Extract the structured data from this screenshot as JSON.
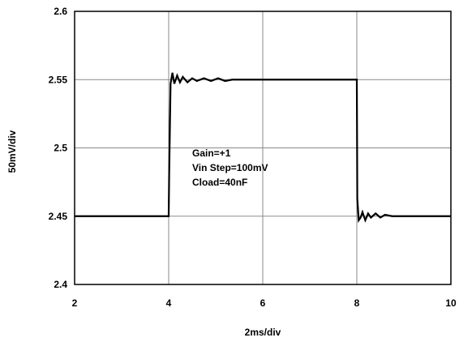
{
  "chart_data": {
    "type": "line",
    "x": [
      2,
      4,
      4.01,
      4.04,
      4.08,
      4.12,
      4.18,
      4.24,
      4.3,
      4.4,
      4.5,
      4.6,
      4.75,
      4.9,
      5.05,
      5.2,
      5.35,
      8,
      8.01,
      8.04,
      8.08,
      8.12,
      8.18,
      8.24,
      8.3,
      8.4,
      8.5,
      8.6,
      8.75,
      8.9,
      10
    ],
    "series": [
      {
        "name": "",
        "values": [
          2.45,
          2.45,
          2.48,
          2.547,
          2.555,
          2.547,
          2.553,
          2.548,
          2.552,
          2.548,
          2.551,
          2.549,
          2.551,
          2.549,
          2.551,
          2.549,
          2.55,
          2.55,
          2.463,
          2.447,
          2.449,
          2.453,
          2.447,
          2.452,
          2.449,
          2.452,
          2.449,
          2.451,
          2.45,
          2.45,
          2.45
        ]
      }
    ],
    "xlim": [
      2,
      10
    ],
    "ylim": [
      2.4,
      2.6
    ],
    "xticks": [
      "2",
      "4",
      "6",
      "8",
      "10"
    ],
    "yticks": [
      "2.4",
      "2.45",
      "2.5",
      "2.55",
      "2.6"
    ],
    "xlabel": "2ms/div",
    "ylabel": "50mV/div",
    "title": "",
    "grid": true,
    "annotations": [
      "Gain=+1",
      "Vin Step=100mV",
      "Cload=40nF"
    ],
    "line_color": "#000000"
  }
}
